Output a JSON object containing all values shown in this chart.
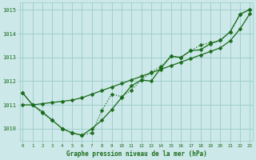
{
  "x": [
    0,
    1,
    2,
    3,
    4,
    5,
    6,
    7,
    8,
    9,
    10,
    11,
    12,
    13,
    14,
    15,
    16,
    17,
    18,
    19,
    20,
    21,
    22,
    23
  ],
  "s1": [
    1011.5,
    1011.0,
    1010.65,
    1010.35,
    1010.0,
    1009.82,
    1009.72,
    1009.82,
    1010.75,
    1011.45,
    1011.35,
    1011.62,
    1012.05,
    1012.38,
    1012.62,
    1013.05,
    1013.0,
    1013.28,
    1013.52,
    1013.62,
    1013.72,
    1014.08,
    1014.82,
    1015.02
  ],
  "s2": [
    1011.5,
    1011.0,
    1010.7,
    1010.35,
    1010.0,
    1009.82,
    1009.72,
    1010.0,
    1010.35,
    1010.8,
    1011.3,
    1011.8,
    1012.05,
    1012.0,
    1012.55,
    1013.05,
    1013.0,
    1013.28,
    1013.32,
    1013.58,
    1013.72,
    1014.08,
    1014.82,
    1015.02
  ],
  "s3": [
    1011.0,
    1011.0,
    1011.05,
    1011.1,
    1011.15,
    1011.2,
    1011.3,
    1011.45,
    1011.6,
    1011.75,
    1011.9,
    1012.05,
    1012.2,
    1012.35,
    1012.5,
    1012.65,
    1012.8,
    1012.95,
    1013.1,
    1013.25,
    1013.4,
    1013.7,
    1014.2,
    1014.85
  ],
  "line_color": "#1a6b1a",
  "bg_color": "#cce8e8",
  "grid_color": "#99cccc",
  "label_color": "#1a6b1a",
  "xlabel": "Graphe pression niveau de la mer (hPa)",
  "ylim": [
    1009.5,
    1015.3
  ],
  "yticks": [
    1010,
    1011,
    1012,
    1013,
    1014,
    1015
  ],
  "xticks": [
    0,
    1,
    2,
    3,
    4,
    5,
    6,
    7,
    8,
    9,
    10,
    11,
    12,
    13,
    14,
    15,
    16,
    17,
    18,
    19,
    20,
    21,
    22,
    23
  ],
  "xlim": [
    -0.3,
    23.3
  ]
}
